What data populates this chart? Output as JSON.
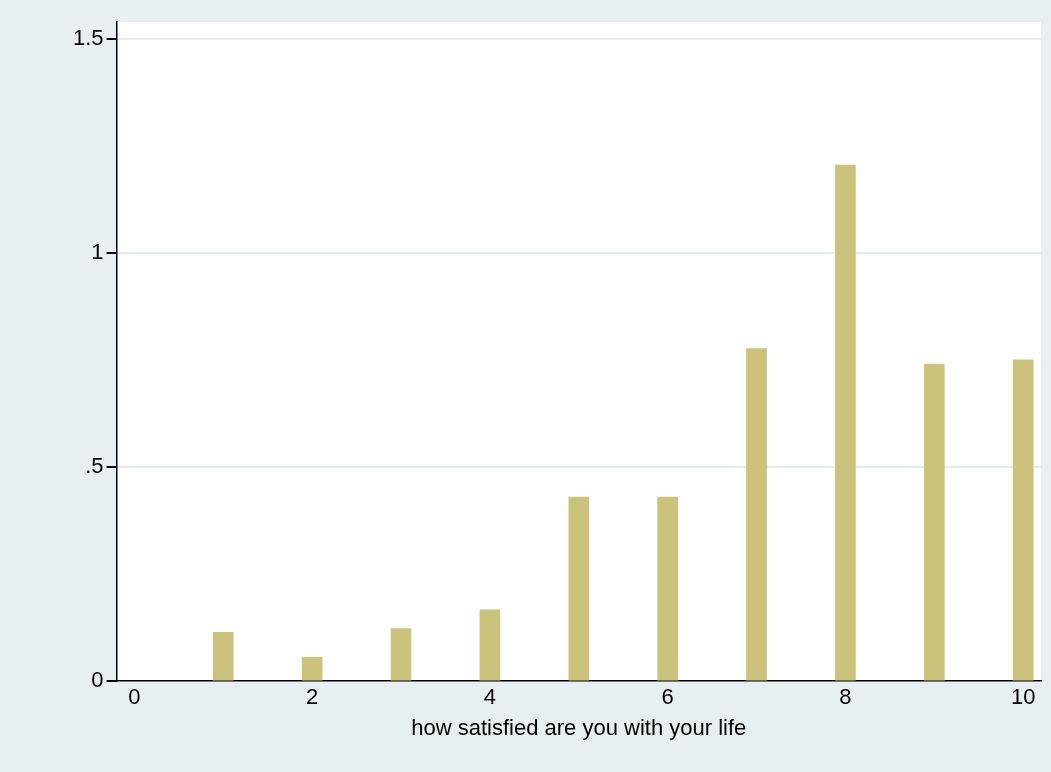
{
  "chart_data": {
    "type": "bar",
    "xlabel": "how satisfied are you with your life",
    "x": [
      1,
      2,
      3,
      4,
      5,
      6,
      7,
      8,
      9,
      10
    ],
    "values": [
      0.114,
      0.056,
      0.123,
      0.167,
      0.43,
      0.43,
      0.777,
      1.206,
      0.741,
      0.751
    ],
    "color": "#cbc37c",
    "xlim": [
      -0.2,
      10.2
    ],
    "xticks": [
      0,
      2,
      4,
      6,
      8,
      10
    ],
    "ylim": [
      0,
      1.54
    ],
    "yticks": [
      0,
      {
        "value": 0.5,
        "label": ".5"
      },
      1,
      1.5
    ],
    "grid": "y"
  }
}
